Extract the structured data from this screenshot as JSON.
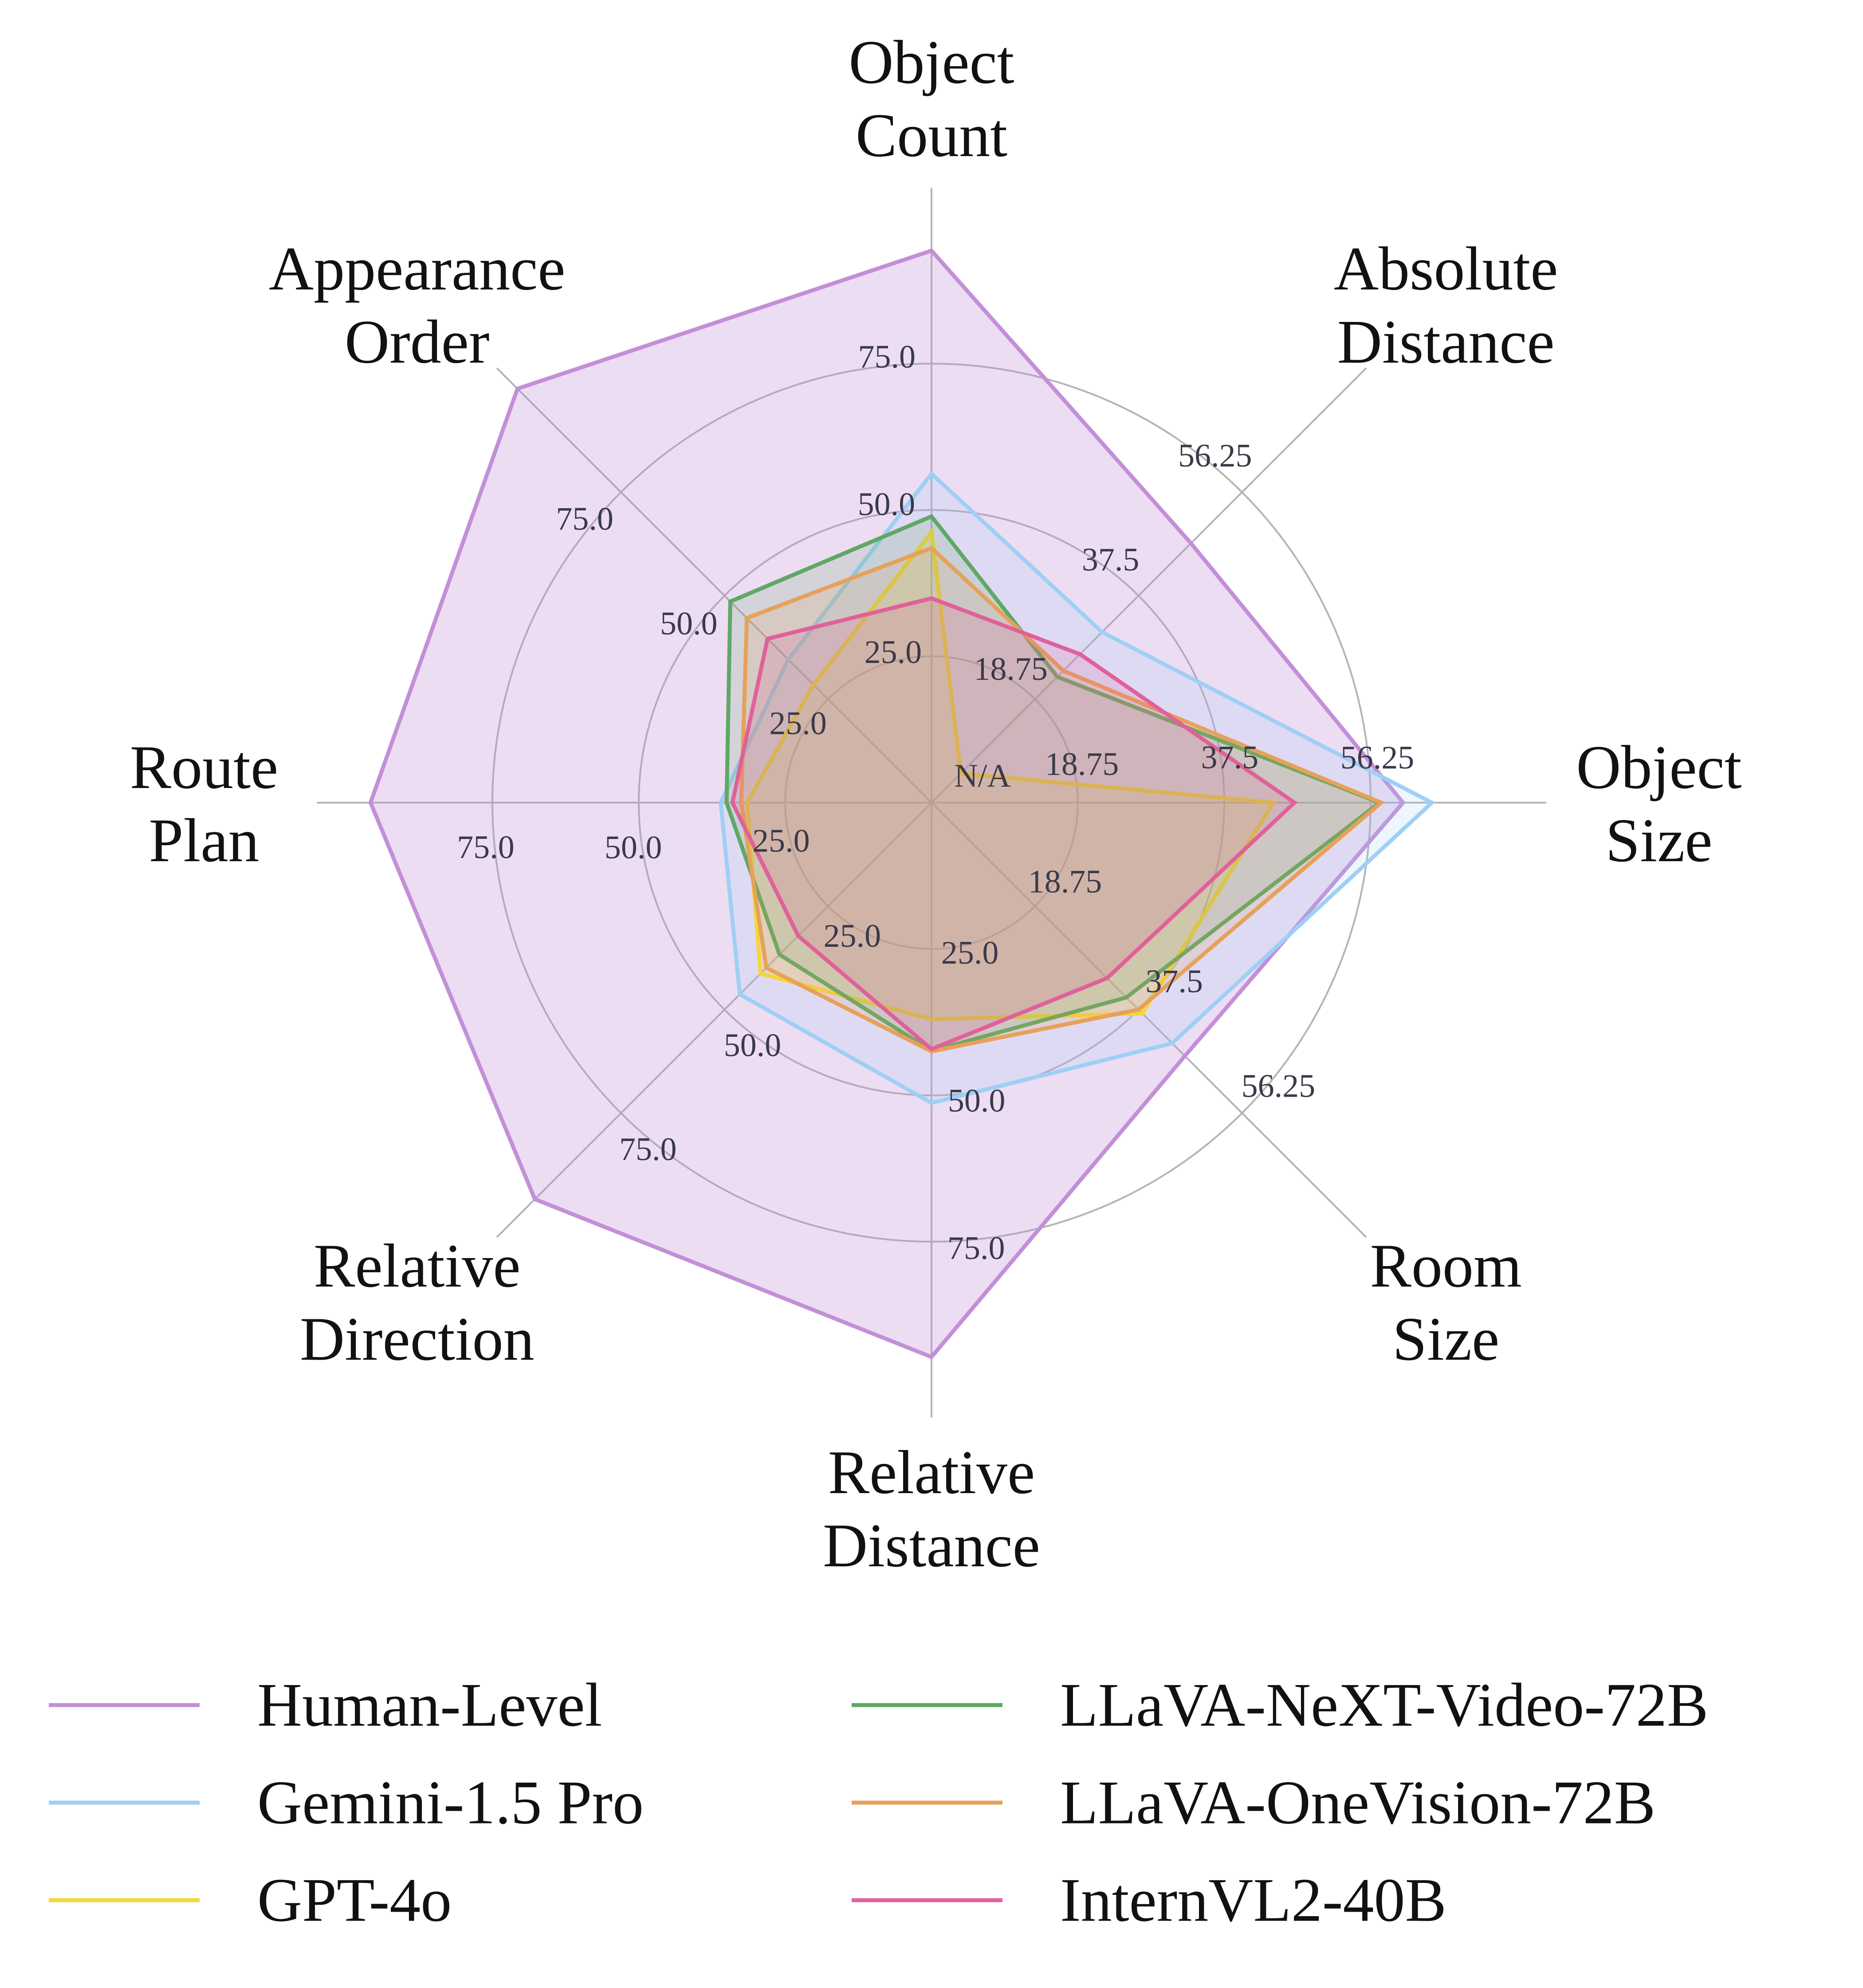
{
  "chart_data": {
    "type": "radar",
    "title": "",
    "axes": [
      {
        "label": [
          "Object",
          "Count"
        ],
        "ticks": [
          "25.0",
          "50.0",
          "75.0"
        ],
        "max": 100
      },
      {
        "label": [
          "Absolute",
          "Distance"
        ],
        "ticks": [
          "18.75",
          "37.5",
          "56.25"
        ],
        "max": 75
      },
      {
        "label": [
          "Object",
          "Size"
        ],
        "ticks": [
          "18.75",
          "37.5",
          "56.25"
        ],
        "max": 75
      },
      {
        "label": [
          "Room",
          "Size"
        ],
        "ticks": [
          "18.75",
          "37.5",
          "56.25"
        ],
        "max": 75
      },
      {
        "label": [
          "Relative",
          "Distance"
        ],
        "ticks": [
          "25.0",
          "50.0",
          "75.0"
        ],
        "max": 100
      },
      {
        "label": [
          "Relative",
          "Direction"
        ],
        "ticks": [
          "25.0",
          "50.0",
          "75.0"
        ],
        "max": 100
      },
      {
        "label": [
          "Route",
          "Plan"
        ],
        "ticks": [
          "25.0",
          "50.0",
          "75.0"
        ],
        "max": 100
      },
      {
        "label": [
          "Appearance",
          "Order"
        ],
        "ticks": [
          "25.0",
          "50.0",
          "75.0"
        ],
        "max": 100
      }
    ],
    "grid_rings": [
      25,
      50,
      75,
      100
    ],
    "center_label": "N/A",
    "series": [
      {
        "name": "Human-Level",
        "color": "#c38fd8",
        "fill_opacity": 0.3,
        "values": [
          94.3,
          47.0,
          60.4,
          45.9,
          94.7,
          95.8,
          95.8,
          100.0
        ]
      },
      {
        "name": "Gemini-1.5 Pro",
        "color": "#9fcff5",
        "fill_opacity": 0.18,
        "values": [
          56.2,
          30.9,
          64.1,
          43.6,
          51.3,
          46.3,
          36.0,
          34.6
        ]
      },
      {
        "name": "GPT-4o",
        "color": "#f4d63b",
        "fill_opacity": 0.18,
        "values": [
          46.2,
          5.3,
          43.8,
          38.2,
          37.0,
          41.3,
          31.5,
          28.5
        ]
      },
      {
        "name": "LLaVA-NeXT-Video-72B",
        "color": "#5fa865",
        "fill_opacity": 0.18,
        "values": [
          48.9,
          22.8,
          57.4,
          35.3,
          42.4,
          36.7,
          35.0,
          48.6
        ]
      },
      {
        "name": "LLaVA-OneVision-72B",
        "color": "#e6a15a",
        "fill_opacity": 0.18,
        "values": [
          43.5,
          23.9,
          57.6,
          37.5,
          42.5,
          39.9,
          32.5,
          44.6
        ]
      },
      {
        "name": "InternVL2-40B",
        "color": "#e0619a",
        "fill_opacity": 0.18,
        "values": [
          34.9,
          26.9,
          46.5,
          31.8,
          42.1,
          32.2,
          34.0,
          39.6
        ]
      }
    ],
    "legend": {
      "position": "bottom",
      "columns": 2
    }
  }
}
